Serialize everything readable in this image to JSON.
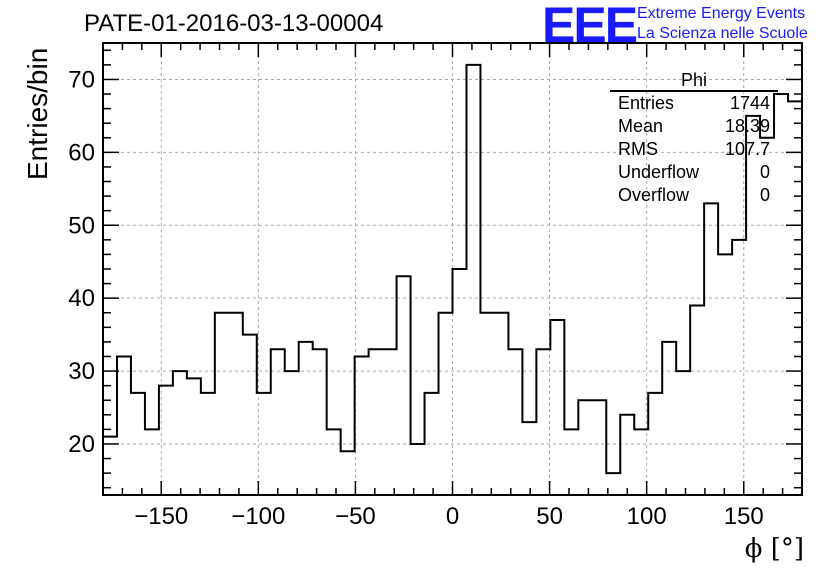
{
  "chart_data": {
    "type": "bar",
    "style": "step-histogram",
    "title": "PATE-01-2016-03-13-00004",
    "xlabel": "ϕ [°]",
    "ylabel": "Entries/bin",
    "xlim": [
      -180,
      180
    ],
    "ylim": [
      13,
      75
    ],
    "xticks": [
      -150,
      -100,
      -50,
      0,
      50,
      100,
      150
    ],
    "yticks": [
      20,
      30,
      40,
      50,
      60,
      70
    ],
    "grid": true,
    "bin_width": 7.2,
    "values": [
      21,
      32,
      27,
      22,
      28,
      30,
      29,
      27,
      38,
      38,
      35,
      27,
      33,
      30,
      34,
      33,
      22,
      19,
      32,
      33,
      33,
      43,
      20,
      27,
      38,
      44,
      72,
      38,
      38,
      33,
      23,
      33,
      37,
      22,
      26,
      26,
      16,
      24,
      22,
      27,
      34,
      30,
      39,
      53,
      46,
      48,
      65,
      62,
      68,
      67
    ],
    "line_color": "#000000"
  },
  "stats_box": {
    "title": "Phi",
    "rows": [
      {
        "label": "Entries",
        "value": "1744"
      },
      {
        "label": "Mean",
        "value": "18.39"
      },
      {
        "label": "RMS",
        "value": "107.7"
      },
      {
        "label": "Underflow",
        "value": "0"
      },
      {
        "label": "Overflow",
        "value": "0"
      }
    ]
  },
  "logo": {
    "mark": "EEE",
    "line1": "Extreme Energy Events",
    "line2": "La Scienza nelle Scuole",
    "color": "#1a1aff"
  }
}
